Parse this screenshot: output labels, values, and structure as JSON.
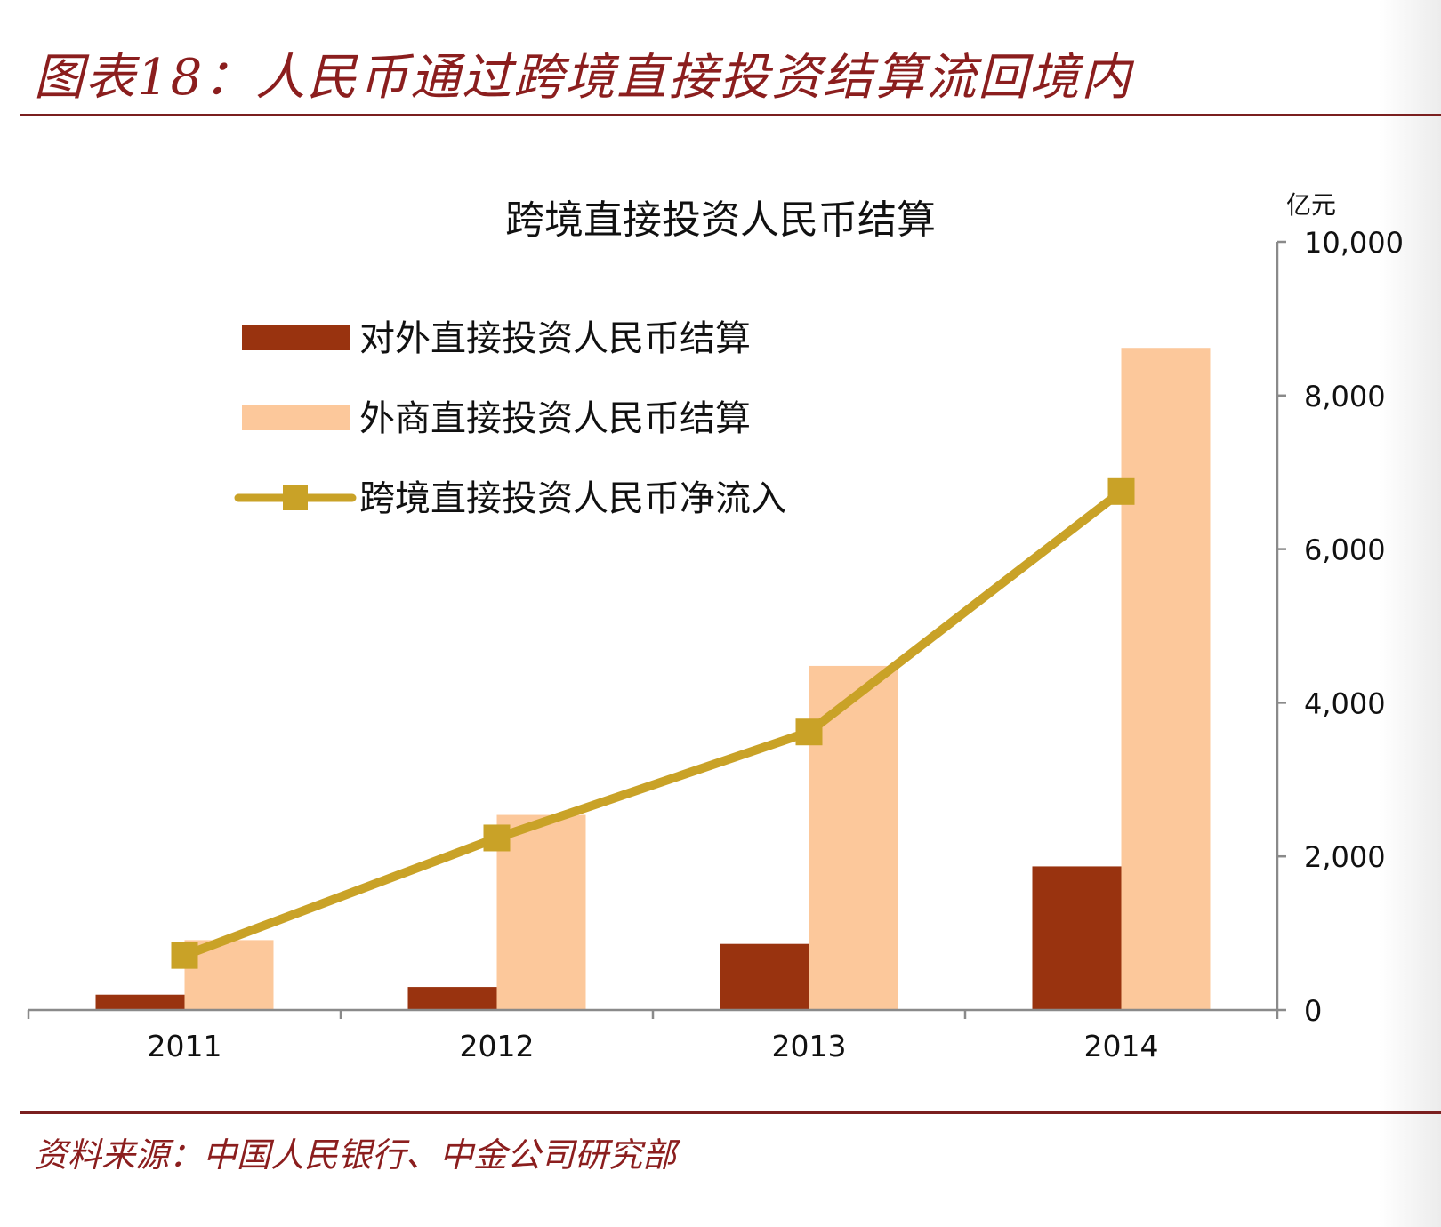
{
  "figure": {
    "title": "图表18：人民币通过跨境直接投资结算流回境内",
    "source": "资料来源：中国人民银行、中金公司研究部"
  },
  "chart_data": {
    "type": "bar",
    "title": "跨境直接投资人民币结算",
    "categories": [
      "2011",
      "2012",
      "2013",
      "2014"
    ],
    "y_unit": "亿元",
    "ylim": [
      0,
      10000
    ],
    "yticks": [
      0,
      2000,
      4000,
      6000,
      8000,
      10000
    ],
    "ytick_labels": [
      "0",
      "2,000",
      "4,000",
      "6,000",
      "8,000",
      "10,000"
    ],
    "y_axis_side": "right",
    "grid": false,
    "legend_position": "top-left",
    "series": [
      {
        "name": "对外直接投资人民币结算",
        "kind": "bar",
        "color": "#99330f",
        "values": [
          200,
          300,
          860,
          1870
        ]
      },
      {
        "name": "外商直接投资人民币结算",
        "kind": "bar",
        "color": "#fcc89b",
        "values": [
          910,
          2540,
          4480,
          8620
        ]
      },
      {
        "name": "跨境直接投资人民币净流入",
        "kind": "line",
        "marker": "square",
        "color": "#c9a227",
        "values": [
          710,
          2240,
          3620,
          6750
        ]
      }
    ]
  }
}
